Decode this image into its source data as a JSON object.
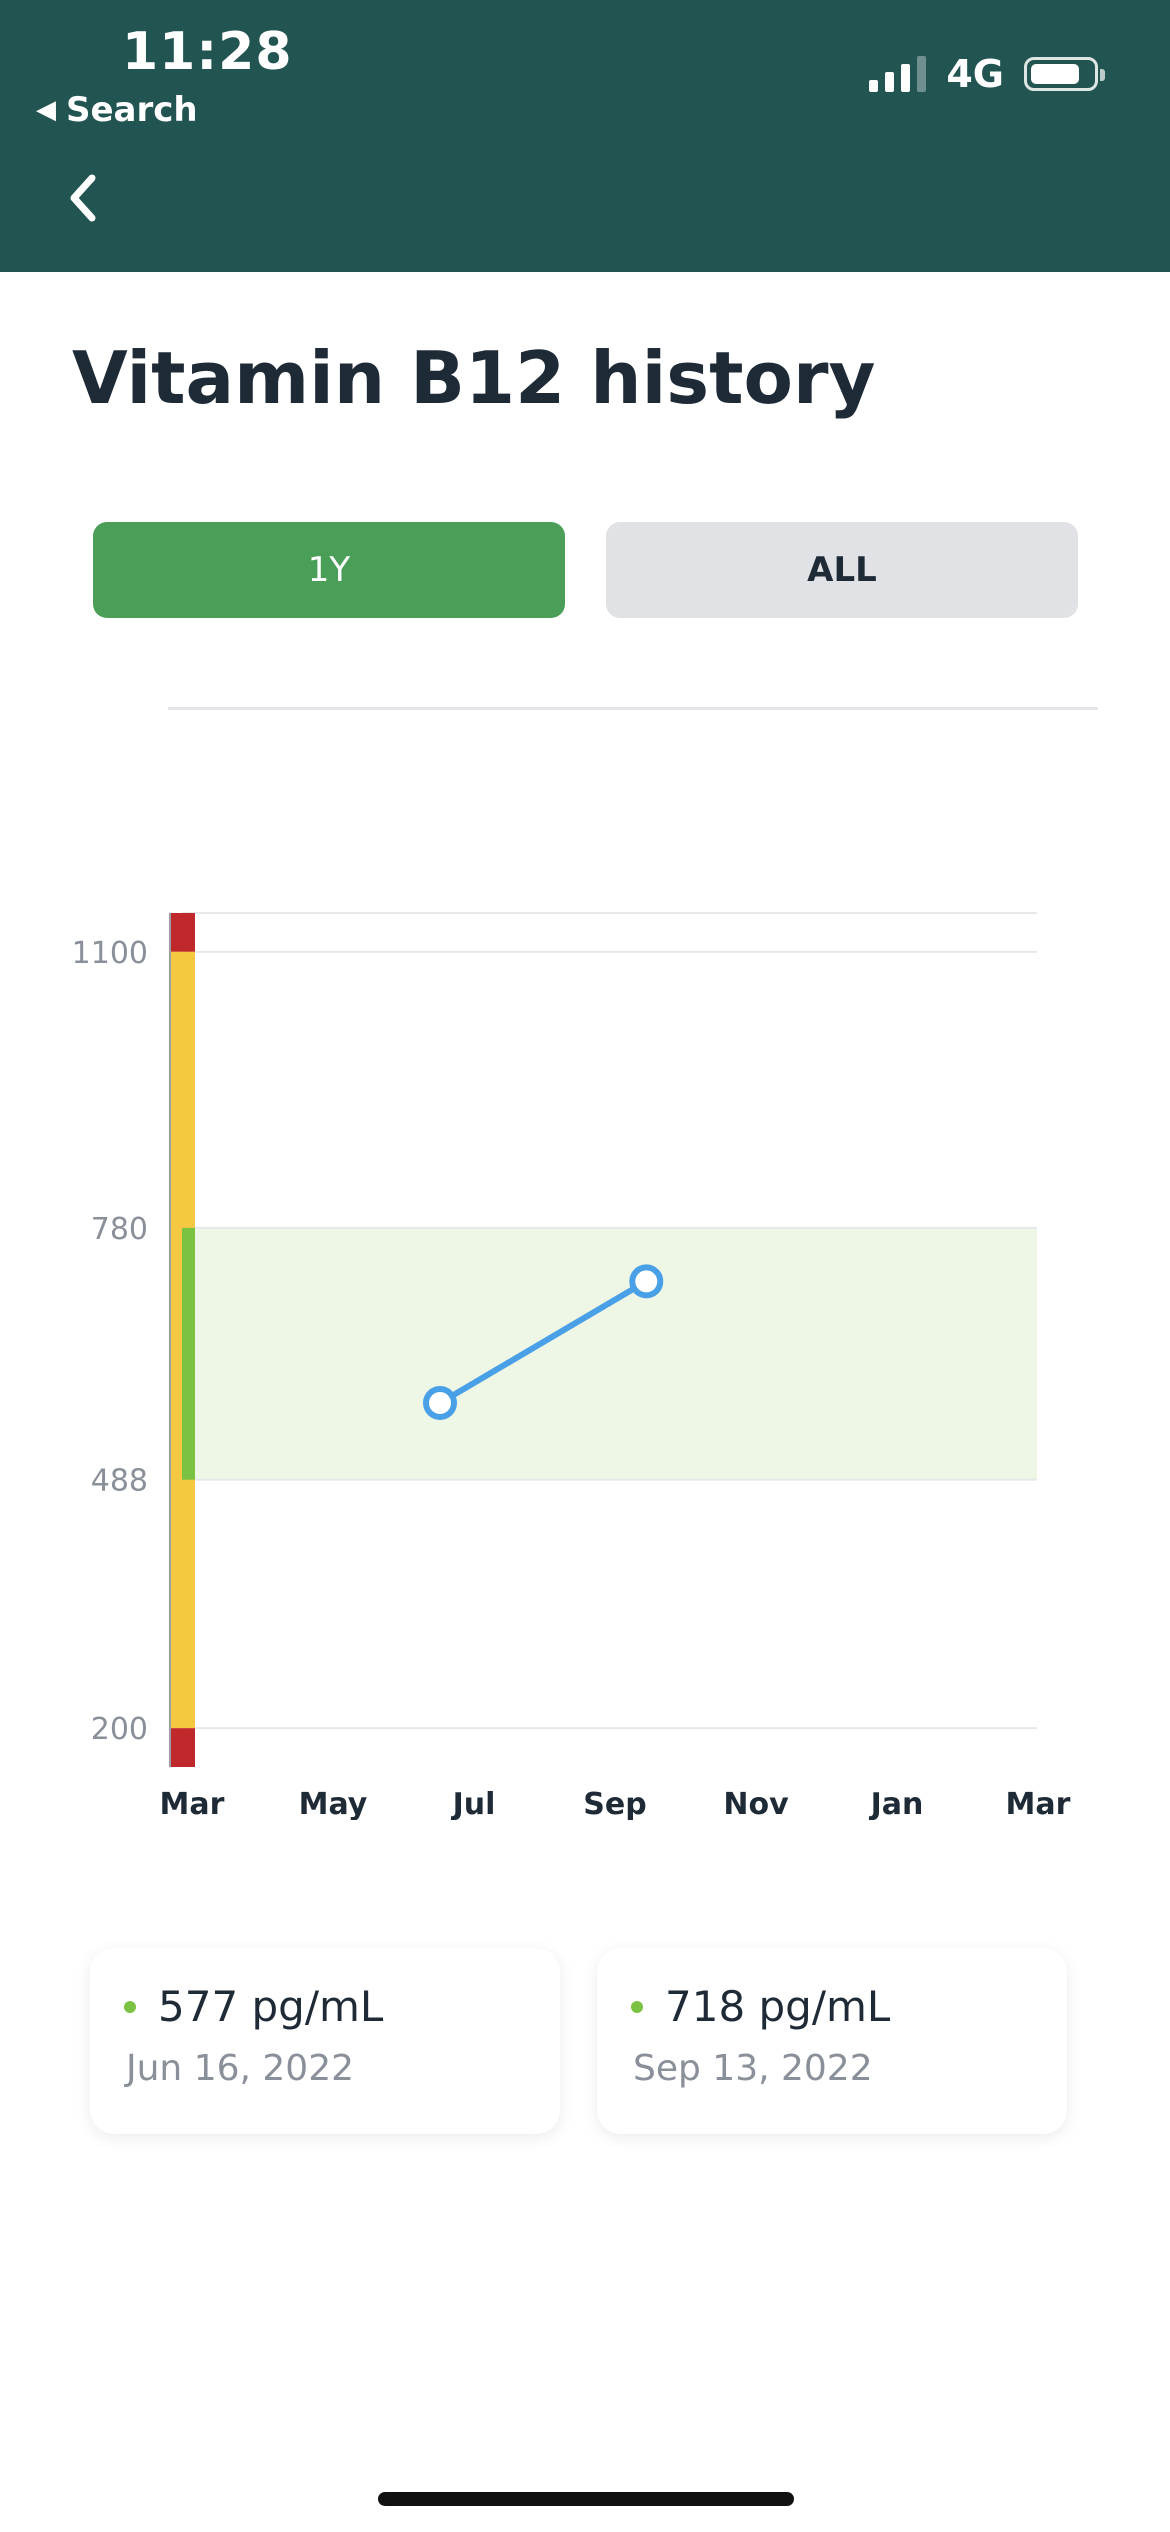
{
  "status_bar": {
    "time": "11:28",
    "back_app_label": "Search",
    "network": "4G"
  },
  "page": {
    "title": "Vitamin B12 history"
  },
  "range_toggle": {
    "options": [
      {
        "label": "1Y",
        "active": true
      },
      {
        "label": "ALL",
        "active": false
      }
    ]
  },
  "readings": [
    {
      "value": "577 pg/mL",
      "date": "Jun 16, 2022"
    },
    {
      "value": "718 pg/mL",
      "date": "Sep 13, 2022"
    }
  ],
  "chart_data": {
    "type": "line",
    "x_ticks": [
      "Mar",
      "May",
      "Jul",
      "Sep",
      "Nov",
      "Jan",
      "Mar"
    ],
    "x_range": [
      "2022-03",
      "2023-03"
    ],
    "y_ticks": [
      200,
      488,
      780,
      1100
    ],
    "ylim": [
      155,
      1145
    ],
    "optimal_range": [
      488,
      780
    ],
    "range_bar": [
      {
        "from": 1100,
        "to": 1145,
        "color": "#c0292b"
      },
      {
        "from": 200,
        "to": 1100,
        "color": "#f5c842"
      },
      {
        "from": 488,
        "to": 780,
        "color": "#7cc242"
      },
      {
        "from": 155,
        "to": 200,
        "color": "#c0292b"
      }
    ],
    "series": [
      {
        "points": [
          {
            "x": "2022-06-16",
            "y": 577
          },
          {
            "x": "2022-09-13",
            "y": 718
          }
        ],
        "color": "#4aa0e6"
      }
    ],
    "colors": {
      "optimal_band": "#eef7e5",
      "grid": "#e6e8eb",
      "axis_label": "#8a9099",
      "tick_label": "#1f2a37"
    }
  }
}
